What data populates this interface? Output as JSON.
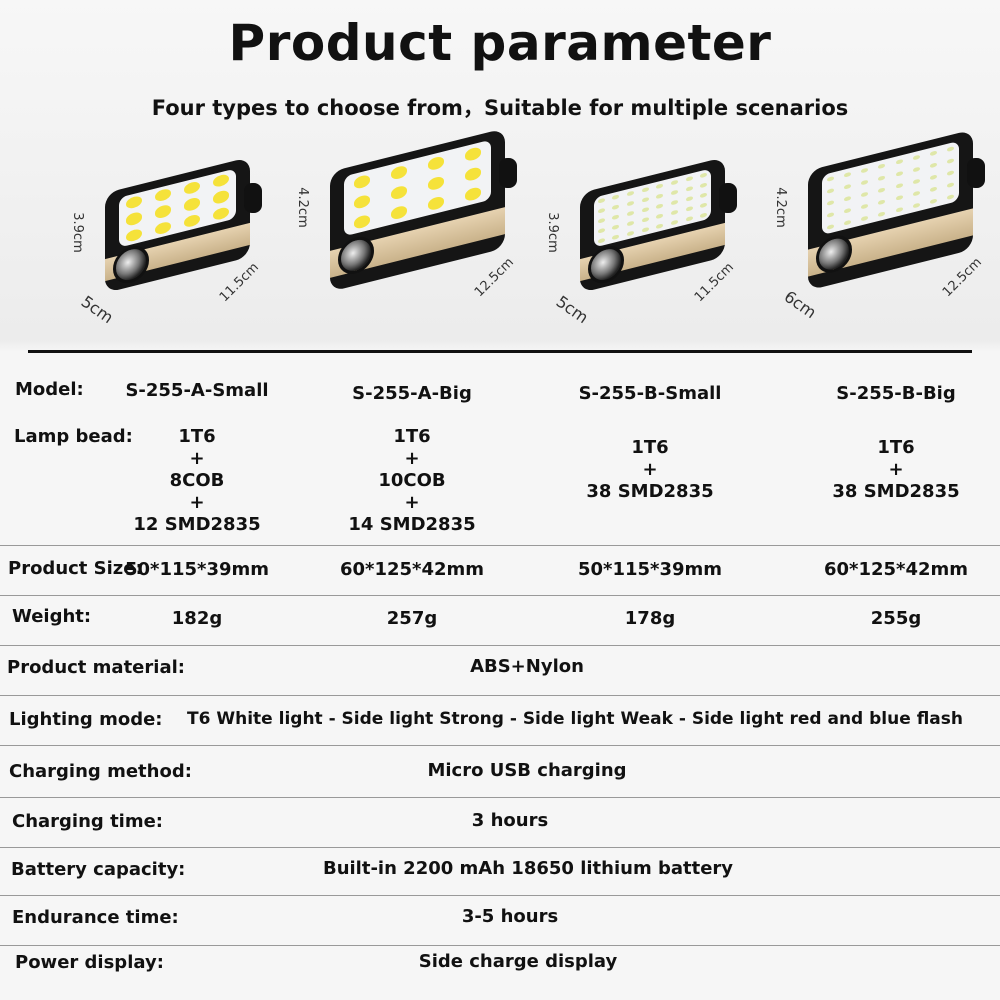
{
  "header": {
    "title": "Product parameter",
    "subtitle": "Four types to choose from，Suitable for multiple scenarios"
  },
  "products": [
    {
      "model": "S-255-A-Small",
      "height": "3.9cm",
      "length": "11.5cm",
      "width": "5cm",
      "lamp": [
        "1T6",
        "+",
        "8COB",
        "+",
        "12 SMD2835"
      ],
      "size": "50*115*39mm",
      "weight": "182g",
      "led_color": "#f5e23a"
    },
    {
      "model": "S-255-A-Big",
      "height": "4.2cm",
      "length": "12.5cm",
      "width": "",
      "lamp": [
        "1T6",
        "+",
        "10COB",
        "+",
        "14 SMD2835"
      ],
      "size": "60*125*42mm",
      "weight": "257g",
      "led_color": "#f5e23a"
    },
    {
      "model": "S-255-B-Small",
      "height": "3.9cm",
      "length": "11.5cm",
      "width": "5cm",
      "lamp": [
        "1T6",
        "+",
        "38 SMD2835"
      ],
      "size": "50*115*39mm",
      "weight": "178g",
      "led_color": "#dfe7a8"
    },
    {
      "model": "S-255-B-Big",
      "height": "4.2cm",
      "length": "12.5cm",
      "width": "6cm",
      "lamp": [
        "1T6",
        "+",
        "38 SMD2835"
      ],
      "size": "60*125*42mm",
      "weight": "255g",
      "led_color": "#dfe7a8"
    }
  ],
  "labels": {
    "model": "Model:",
    "lamp": "Lamp bead:",
    "size": "Product Size:",
    "weight": "Weight:"
  },
  "specs": [
    {
      "label": "Product material:",
      "value": "ABS+Nylon"
    },
    {
      "label": "Lighting mode:",
      "value": "T6 White light - Side light Strong - Side light Weak - Side light red and blue flash"
    },
    {
      "label": "Charging method:",
      "value": "Micro USB charging"
    },
    {
      "label": "Charging time:",
      "value": "3 hours"
    },
    {
      "label": "Battery capacity:",
      "value": "Built-in 2200 mAh 18650 lithium battery"
    },
    {
      "label": "Endurance time:",
      "value": "3-5 hours"
    },
    {
      "label": "Power display:",
      "value": "Side charge display"
    }
  ]
}
